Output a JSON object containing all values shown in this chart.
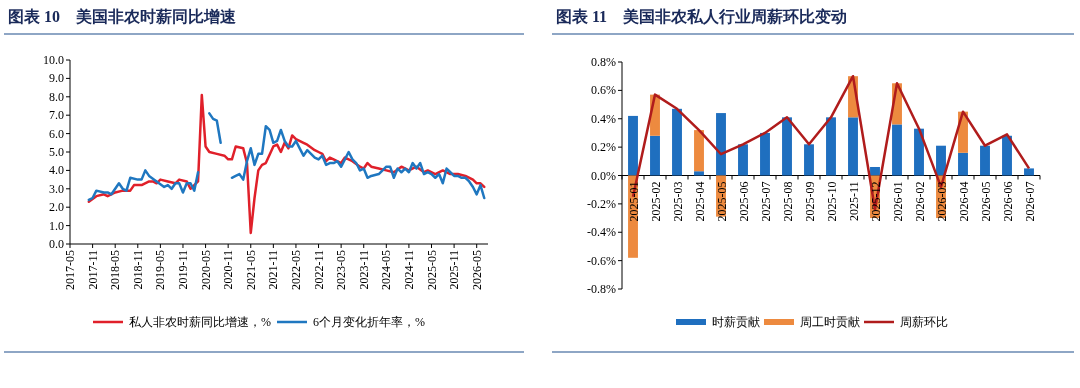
{
  "chart_data": [
    {
      "type": "line",
      "title": "图表 10　美国非农时薪同比增速",
      "xlim": [
        "2017-05",
        "2026-08"
      ],
      "xticks": [
        "2017-05",
        "2017-11",
        "2018-05",
        "2018-11",
        "2019-05",
        "2019-11",
        "2020-05",
        "2020-11",
        "2021-05",
        "2021-11",
        "2022-05",
        "2022-11",
        "2023-05",
        "2023-11",
        "2024-05",
        "2024-11",
        "2025-05",
        "2025-11",
        "2026-05"
      ],
      "ylim": [
        0,
        10
      ],
      "yticks": [
        {
          "value": 0,
          "label": "0.0"
        },
        {
          "value": 1,
          "label": "1.0"
        },
        {
          "value": 2,
          "label": "2.0"
        },
        {
          "value": 3,
          "label": "3.0"
        },
        {
          "value": 4,
          "label": "4.0"
        },
        {
          "value": 5,
          "label": "5.0"
        },
        {
          "value": 6,
          "label": "6.0"
        },
        {
          "value": 7,
          "label": "7.0"
        },
        {
          "value": 8,
          "label": "8.0"
        },
        {
          "value": 9,
          "label": "9.0"
        },
        {
          "value": 10,
          "label": "10.0"
        }
      ],
      "grid": false,
      "legend": "bottom",
      "marker": "none",
      "line_style": "solid",
      "series": [
        {
          "name": "私人非农时薪同比增速，%",
          "color": "#e0202a",
          "x": [
            "2017-10",
            "2017-12",
            "2018-02",
            "2018-03",
            "2018-05",
            "2018-07",
            "2018-09",
            "2018-10",
            "2018-12",
            "2019-02",
            "2019-03",
            "2019-04",
            "2019-05",
            "2019-07",
            "2019-09",
            "2019-10",
            "2019-12",
            "2020-01",
            "2020-03",
            "2020-04",
            "2020-05",
            "2020-06",
            "2020-08",
            "2020-10",
            "2020-11",
            "2020-12",
            "2021-01",
            "2021-03",
            "2021-04",
            "2021-05",
            "2021-06",
            "2021-07",
            "2021-08",
            "2021-09",
            "2021-11",
            "2021-12",
            "2022-01",
            "2022-02",
            "2022-03",
            "2022-04",
            "2022-05",
            "2022-07",
            "2022-08",
            "2022-10",
            "2022-11",
            "2022-12",
            "2023-01",
            "2023-02",
            "2023-03",
            "2023-05",
            "2023-06",
            "2023-08",
            "2023-10",
            "2023-11",
            "2023-12",
            "2024-01",
            "2024-03",
            "2024-05",
            "2024-07",
            "2024-09",
            "2024-11",
            "2025-01",
            "2025-03",
            "2025-04",
            "2025-06",
            "2025-08",
            "2025-10",
            "2025-12",
            "2026-02",
            "2026-04",
            "2026-05",
            "2026-06",
            "2026-07"
          ],
          "values": [
            2.3,
            2.6,
            2.7,
            2.6,
            2.8,
            2.9,
            2.9,
            3.2,
            3.2,
            3.4,
            3.4,
            3.3,
            3.5,
            3.4,
            3.3,
            3.5,
            3.4,
            3.0,
            3.4,
            8.1,
            5.3,
            5.0,
            4.9,
            4.8,
            4.6,
            4.6,
            5.3,
            5.2,
            4.4,
            0.6,
            2.5,
            4.0,
            4.3,
            4.4,
            5.3,
            5.4,
            5.0,
            5.5,
            5.2,
            5.9,
            5.7,
            5.5,
            5.4,
            5.1,
            5.0,
            4.9,
            4.5,
            4.7,
            4.6,
            4.4,
            4.7,
            4.5,
            4.2,
            4.1,
            4.4,
            4.2,
            4.1,
            4.0,
            3.9,
            4.2,
            4.0,
            4.2,
            3.9,
            4.0,
            3.8,
            4.0,
            3.8,
            3.8,
            3.7,
            3.5,
            3.3,
            3.3,
            3.1
          ]
        },
        {
          "name": "6个月变化折年率，%",
          "color": "#1f77c0",
          "x": [
            "2017-10",
            "2017-11",
            "2017-12",
            "2018-02",
            "2018-03",
            "2018-04",
            "2018-06",
            "2018-07",
            "2018-08",
            "2018-09",
            "2018-11",
            "2018-12",
            "2019-01",
            "2019-02",
            "2019-04",
            "2019-06",
            "2019-07",
            "2019-08",
            "2019-09",
            "2019-10",
            "2019-11",
            "2019-12",
            "2020-01",
            "2020-02",
            "2020-03",
            "2020-04",
            "2020-05",
            "2020-06",
            "2020-07",
            "2020-08",
            "2020-09",
            "2020-10",
            "2020-11",
            "2020-12",
            "2021-01",
            "2021-02",
            "2021-03",
            "2021-04",
            "2021-05",
            "2021-06",
            "2021-07",
            "2021-08",
            "2021-09",
            "2021-10",
            "2021-11",
            "2021-12",
            "2022-01",
            "2022-02",
            "2022-03",
            "2022-04",
            "2022-05",
            "2022-06",
            "2022-07",
            "2022-08",
            "2022-09",
            "2022-10",
            "2022-11",
            "2022-12",
            "2023-01",
            "2023-02",
            "2023-03",
            "2023-04",
            "2023-05",
            "2023-06",
            "2023-07",
            "2023-08",
            "2023-09",
            "2023-10",
            "2023-11",
            "2023-12",
            "2024-01",
            "2024-03",
            "2024-04",
            "2024-05",
            "2024-06",
            "2024-07",
            "2024-08",
            "2024-09",
            "2024-10",
            "2024-11",
            "2024-12",
            "2025-01",
            "2025-02",
            "2025-03",
            "2025-04",
            "2025-05",
            "2025-06",
            "2025-07",
            "2025-08",
            "2025-09",
            "2025-10",
            "2025-11",
            "2025-12",
            "2026-01",
            "2026-02",
            "2026-03",
            "2026-04",
            "2026-05",
            "2026-06",
            "2026-07"
          ],
          "values": [
            2.4,
            2.5,
            2.9,
            2.8,
            2.8,
            2.7,
            3.3,
            3.0,
            2.9,
            3.6,
            3.5,
            3.5,
            4.0,
            3.7,
            3.4,
            3.1,
            3.2,
            3.0,
            3.3,
            3.3,
            2.8,
            3.3,
            3.3,
            2.9,
            3.9,
            null,
            null,
            7.1,
            6.8,
            6.7,
            5.5,
            null,
            null,
            3.6,
            3.7,
            3.8,
            3.5,
            4.5,
            5.2,
            4.3,
            4.9,
            4.9,
            6.4,
            6.2,
            5.5,
            5.6,
            6.2,
            5.6,
            5.3,
            5.3,
            5.6,
            5.2,
            4.8,
            5.1,
            4.9,
            4.7,
            4.6,
            4.8,
            4.3,
            4.4,
            4.4,
            4.5,
            4.2,
            4.6,
            5.0,
            4.6,
            4.4,
            4.0,
            4.1,
            3.6,
            3.7,
            3.8,
            4.0,
            4.2,
            4.2,
            3.6,
            4.1,
            3.9,
            4.1,
            3.9,
            4.4,
            4.1,
            4.4,
            3.8,
            3.9,
            3.8,
            3.6,
            3.8,
            3.3,
            4.1,
            3.9,
            3.7,
            3.7,
            3.6,
            3.6,
            3.4,
            3.1,
            2.7,
            3.2,
            2.5
          ]
        }
      ]
    },
    {
      "type": "bar",
      "title": "图表 11　美国非农私人行业周薪环比变动",
      "stacked": true,
      "categories": [
        "2025-01",
        "2025-02",
        "2025-03",
        "2025-04",
        "2025-05",
        "2025-06",
        "2025-07",
        "2025-08",
        "2025-09",
        "2025-10",
        "2025-11",
        "2025-12",
        "2026-01",
        "2026-02",
        "2026-03",
        "2026-04",
        "2026-05",
        "2026-06",
        "2026-07"
      ],
      "ylim": [
        -0.8,
        0.8
      ],
      "yticks": [
        {
          "value": -0.8,
          "label": "-0.8%"
        },
        {
          "value": -0.6,
          "label": "-0.6%"
        },
        {
          "value": -0.4,
          "label": "-0.4%"
        },
        {
          "value": -0.2,
          "label": "-0.2%"
        },
        {
          "value": 0,
          "label": "0.0%"
        },
        {
          "value": 0.2,
          "label": "0.2%"
        },
        {
          "value": 0.4,
          "label": "0.4%"
        },
        {
          "value": 0.6,
          "label": "0.6%"
        },
        {
          "value": 0.8,
          "label": "0.8%"
        }
      ],
      "grid": false,
      "legend": "bottom",
      "series": [
        {
          "name": "时薪贡献",
          "type": "bar",
          "color": "#1f6fbf",
          "values": [
            0.42,
            0.28,
            0.47,
            0.03,
            0.44,
            0.22,
            0.3,
            0.41,
            0.22,
            0.41,
            0.41,
            0.06,
            0.36,
            0.33,
            0.21,
            0.16,
            0.21,
            0.28,
            0.05
          ]
        },
        {
          "name": "周工时贡献",
          "type": "bar",
          "color": "#ed8a3f",
          "values": [
            -0.58,
            0.29,
            0,
            0.29,
            -0.29,
            0,
            0,
            0,
            0,
            0,
            0.29,
            -0.3,
            0.29,
            0,
            -0.3,
            0.29,
            0,
            0,
            0
          ]
        },
        {
          "name": "周薪环比",
          "type": "line",
          "color": "#b01c1c",
          "values": [
            -0.15,
            0.57,
            0.47,
            0.32,
            0.15,
            0.22,
            0.3,
            0.41,
            0.22,
            0.41,
            0.7,
            -0.24,
            0.65,
            0.33,
            -0.08,
            0.45,
            0.21,
            0.29,
            0.05
          ]
        }
      ]
    }
  ]
}
